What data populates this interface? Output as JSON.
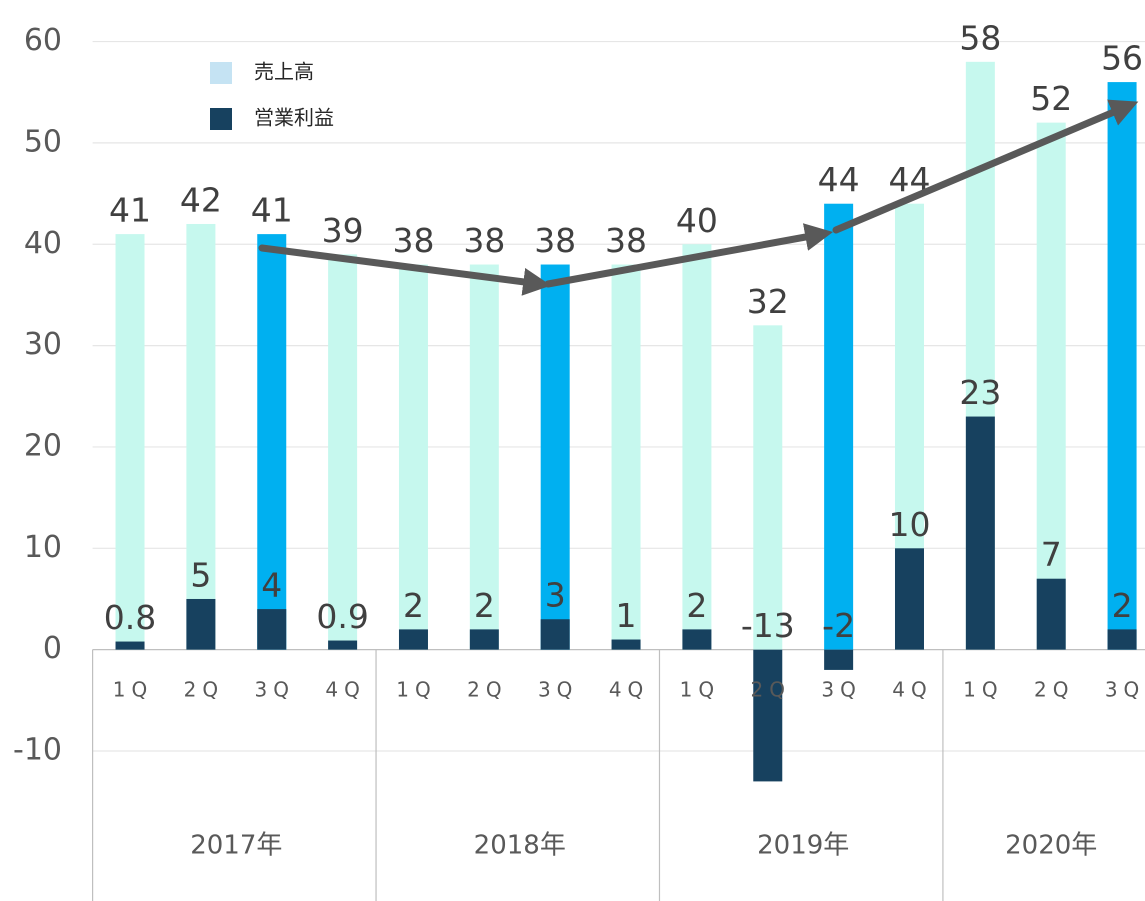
{
  "chart_data": {
    "type": "bar",
    "groups": [
      {
        "label": "2017年",
        "categories": [
          "1Q",
          "2Q",
          "3Q",
          "4Q"
        ]
      },
      {
        "label": "2018年",
        "categories": [
          "1Q",
          "2Q",
          "3Q",
          "4Q"
        ]
      },
      {
        "label": "2019年",
        "categories": [
          "1Q",
          "2Q",
          "3Q",
          "4Q"
        ]
      },
      {
        "label": "2020年",
        "categories": [
          "1Q",
          "2Q",
          "3Q"
        ]
      }
    ],
    "series": [
      {
        "name": "売上高",
        "color": "#c5e3f3",
        "colors": [
          "#c6f8ee",
          "#c6f8ee",
          "#00b0f0",
          "#c6f8ee",
          "#c6f8ee",
          "#c6f8ee",
          "#00b0f0",
          "#c6f8ee",
          "#c6f8ee",
          "#c6f8ee",
          "#00b0f0",
          "#c6f8ee",
          "#c6f8ee",
          "#c6f8ee",
          "#00b0f0"
        ],
        "values": [
          41,
          42,
          41,
          39,
          38,
          38,
          38,
          38,
          40,
          32,
          44,
          44,
          58,
          52,
          56
        ]
      },
      {
        "name": "営業利益",
        "color": "#17415f",
        "values": [
          0.8,
          5,
          4,
          0.9,
          2,
          2,
          3,
          1,
          2,
          -13,
          -2,
          10,
          23,
          7,
          2
        ]
      }
    ],
    "ylim": [
      -24.8,
      64.1
    ],
    "yticks": [
      -10,
      0,
      10,
      20,
      30,
      40,
      50,
      60
    ],
    "grid": true
  }
}
